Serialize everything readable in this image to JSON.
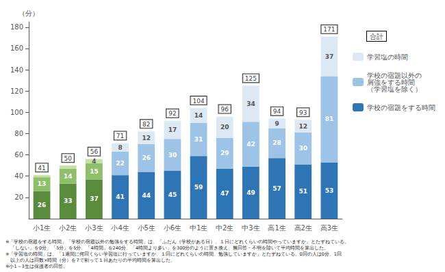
{
  "chart_data": {
    "type": "bar",
    "stacked": true,
    "data_labels": true,
    "grid": false,
    "legend": "right",
    "ylabel": "（分）",
    "categories": [
      "小1生",
      "小2生",
      "小3生",
      "小4生",
      "小5生",
      "小6生",
      "中1生",
      "中2生",
      "中3生",
      "高1生",
      "高2生",
      "高3生"
    ],
    "series": [
      {
        "name": "学校の宿題をする時間",
        "color": "#2e75b6",
        "colors": [
          "#5a8a3c",
          "#5a8a3c",
          "#5a8a3c",
          "#2e75b6",
          "#2e75b6",
          "#2e75b6",
          "#2e75b6",
          "#2e75b6",
          "#2e75b6",
          "#2e75b6",
          "#2e75b6",
          "#2e75b6"
        ],
        "values": [
          26,
          33,
          37,
          41,
          44,
          45,
          59,
          47,
          49,
          57,
          51,
          53
        ]
      },
      {
        "name": "学校の宿題以外の\n屑強をする時間\n（学習塩を除く）",
        "color": "#9dc3e6",
        "colors": [
          "#8ec06c",
          "#8ec06c",
          "#8ec06c",
          "#9dc3e6",
          "#9dc3e6",
          "#9dc3e6",
          "#9dc3e6",
          "#9dc3e6",
          "#9dc3e6",
          "#9dc3e6",
          "#9dc3e6",
          "#9dc3e6"
        ],
        "values": [
          13,
          14,
          15,
          22,
          26,
          30,
          31,
          29,
          42,
          28,
          30,
          81
        ]
      },
      {
        "name": "学習塩の時間",
        "color": "#dce9f5",
        "colors": [
          "#c5e0a0",
          "#c5e0a0",
          "#c5e0a0",
          "#dce9f5",
          "#dce9f5",
          "#dce9f5",
          "#dce9f5",
          "#dce9f5",
          "#dce9f5",
          "#dce9f5",
          "#dce9f5",
          "#dce9f5"
        ],
        "values": [
          2,
          3,
          4,
          8,
          12,
          17,
          14,
          20,
          34,
          9,
          12,
          37
        ],
        "value_labels": [
          null,
          null,
          "4",
          "8",
          "12",
          "17",
          "14",
          "20",
          "34",
          "9",
          "12",
          "37"
        ]
      }
    ],
    "totals": {
      "name": "合計",
      "values": [
        41,
        50,
        56,
        71,
        82,
        92,
        104,
        96,
        125,
        94,
        93,
        171
      ]
    },
    "ylim": [
      0,
      185
    ],
    "yticks": [
      20,
      40,
      60,
      80,
      100,
      120,
      140,
      160,
      180
    ],
    "footnotes": [
      "※「学校の宿題をする時間」「学校の宿題以外の勉強をする時間」は、「ふだん（学校がある日）、１日にどれくらいの時間やっていますか」とたずねている。",
      "　「しない」を0分、「5分」を5分、「4時間」を240分、「4時間より多い」を300分のように置き換え、無回答・不明を除いて平均時間を算出した。",
      "※「学習塩の時間」は、「1週間に何回くらい学習塩に行っていますか、１回にどれくらいの時間、勉強していますか」とたずねている。0回の人は0分、1回",
      "　以上の人は回数×時間（分）を7で割って１日あたりの平均時間を算出した。",
      "※小1～3生は保護者の回答。"
    ]
  }
}
